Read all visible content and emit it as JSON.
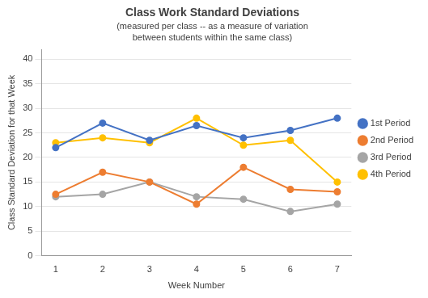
{
  "chart_data": {
    "type": "line",
    "title": "Class Work Standard Deviations",
    "subtitle": "(measured per class -- as a measure of variation\nbetween students within the same class)",
    "xlabel": "Week Number",
    "ylabel": "Class Standard Deviation for that Week",
    "x": [
      1,
      2,
      3,
      4,
      5,
      6,
      7
    ],
    "series": [
      {
        "name": "1st Period",
        "color": "#4472C4",
        "marker": "circle",
        "values": [
          22,
          27,
          23.5,
          26.5,
          24,
          25.5,
          28
        ]
      },
      {
        "name": "2nd Period",
        "color": "#ED7D31",
        "marker": "circle",
        "values": [
          12.5,
          17,
          15,
          10.5,
          18,
          13.5,
          13
        ]
      },
      {
        "name": "3rd Period",
        "color": "#A5A5A5",
        "marker": "circle",
        "values": [
          12,
          12.5,
          15,
          12,
          11.5,
          9,
          10.5
        ]
      },
      {
        "name": "4th Period",
        "color": "#FFC000",
        "marker": "circle",
        "values": [
          23,
          24,
          23,
          28,
          22.5,
          23.5,
          15
        ]
      }
    ],
    "xlim": [
      0.7,
      7.3
    ],
    "xticks": [
      1,
      2,
      3,
      4,
      5,
      6,
      7
    ],
    "ylim": [
      0,
      42
    ],
    "yticks": [
      0,
      5,
      10,
      15,
      20,
      25,
      30,
      35,
      40
    ],
    "grid": true,
    "legend": "right"
  }
}
